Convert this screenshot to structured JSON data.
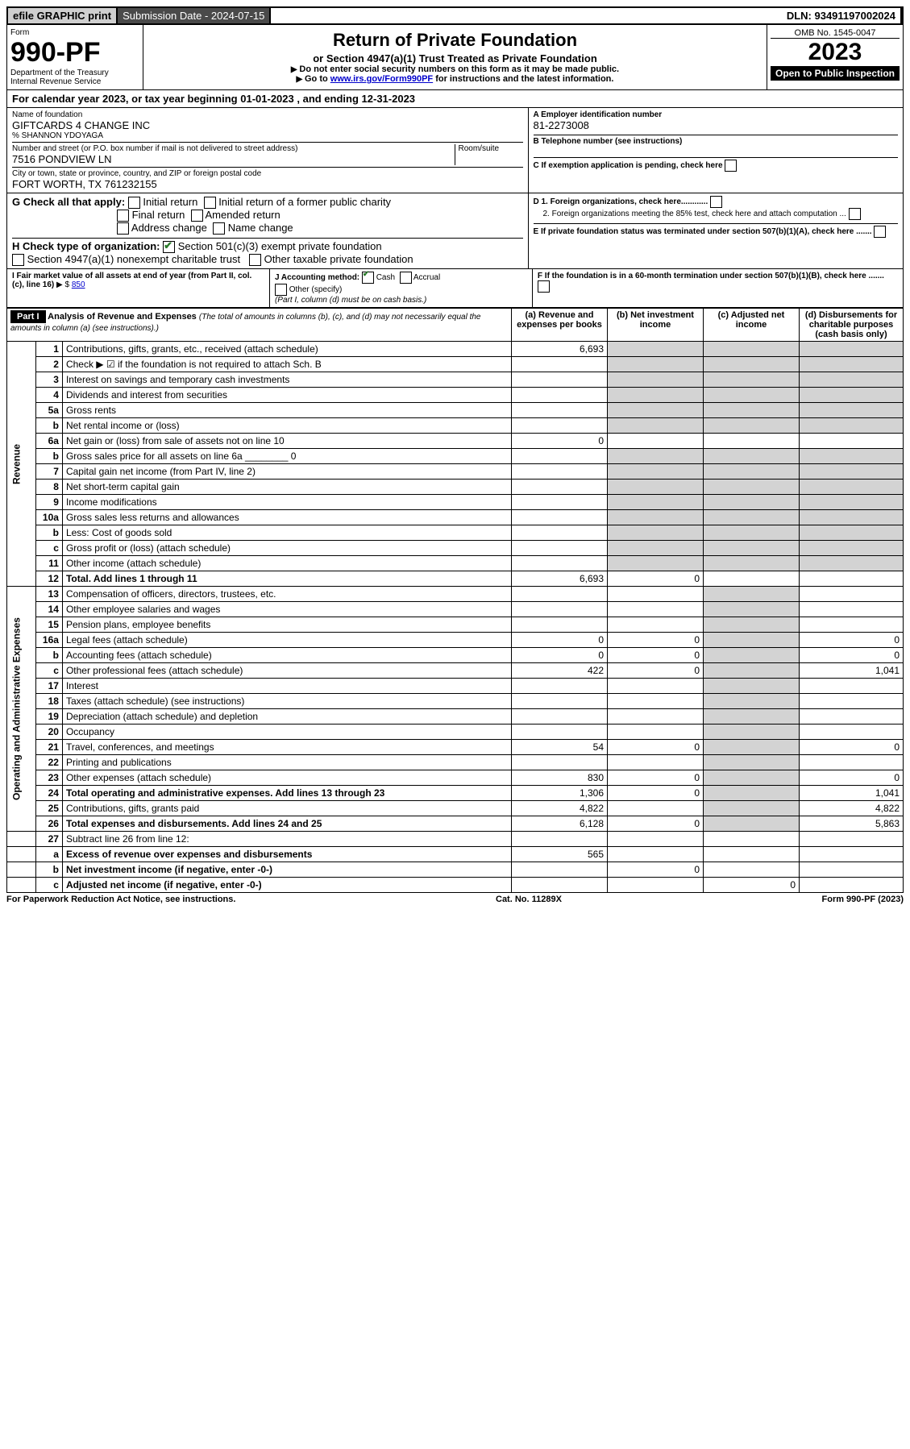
{
  "topbar": {
    "efile": "efile GRAPHIC print",
    "subdate_label": "Submission Date - 2024-07-15",
    "dln": "DLN: 93491197002024"
  },
  "header": {
    "form_word": "Form",
    "form_no": "990-PF",
    "dept": "Department of the Treasury",
    "irs": "Internal Revenue Service",
    "title": "Return of Private Foundation",
    "subtitle": "or Section 4947(a)(1) Trust Treated as Private Foundation",
    "note1": "Do not enter social security numbers on this form as it may be made public.",
    "note2_prefix": "Go to ",
    "note2_link": "www.irs.gov/Form990PF",
    "note2_suffix": " for instructions and the latest information.",
    "omb": "OMB No. 1545-0047",
    "year": "2023",
    "inspect": "Open to Public Inspection"
  },
  "period": {
    "text_prefix": "For calendar year 2023, or tax year beginning ",
    "begin": "01-01-2023",
    "mid": " , and ending ",
    "end": "12-31-2023"
  },
  "entity": {
    "name_label": "Name of foundation",
    "name": "GIFTCARDS 4 CHANGE INC",
    "careof": "% SHANNON YDOYAGA",
    "street_label": "Number and street (or P.O. box number if mail is not delivered to street address)",
    "room_label": "Room/suite",
    "street": "7516 PONDVIEW LN",
    "city_label": "City or town, state or province, country, and ZIP or foreign postal code",
    "city": "FORT WORTH, TX  761232155",
    "ein_label": "A Employer identification number",
    "ein": "81-2273008",
    "phone_label": "B Telephone number (see instructions)",
    "c_label": "C If exemption application is pending, check here"
  },
  "checks": {
    "g_label": "G Check all that apply:",
    "g_items": [
      "Initial return",
      "Initial return of a former public charity",
      "Final return",
      "Amended return",
      "Address change",
      "Name change"
    ],
    "h_label": "H Check type of organization:",
    "h1": "Section 501(c)(3) exempt private foundation",
    "h2": "Section 4947(a)(1) nonexempt charitable trust",
    "h3": "Other taxable private foundation",
    "d1": "D 1. Foreign organizations, check here............",
    "d2": "2. Foreign organizations meeting the 85% test, check here and attach computation ...",
    "e": "E If private foundation status was terminated under section 507(b)(1)(A), check here .......",
    "f": "F If the foundation is in a 60-month termination under section 507(b)(1)(B), check here .......",
    "i_label": "I Fair market value of all assets at end of year (from Part II, col. (c), line 16)",
    "i_val": "850",
    "j_label": "J Accounting method:",
    "j_cash": "Cash",
    "j_accrual": "Accrual",
    "j_other": "Other (specify)",
    "j_note": "(Part I, column (d) must be on cash basis.)"
  },
  "part1": {
    "label": "Part I",
    "title": "Analysis of Revenue and Expenses",
    "title_note": "(The total of amounts in columns (b), (c), and (d) may not necessarily equal the amounts in column (a) (see instructions).)",
    "col_a": "(a) Revenue and expenses per books",
    "col_b": "(b) Net investment income",
    "col_c": "(c) Adjusted net income",
    "col_d": "(d) Disbursements for charitable purposes (cash basis only)"
  },
  "sections": {
    "revenue": "Revenue",
    "opex": "Operating and Administrative Expenses"
  },
  "rows": [
    {
      "sec": "rev",
      "no": "1",
      "desc": "Contributions, gifts, grants, etc., received (attach schedule)",
      "a": "6,693",
      "b": "",
      "c": "",
      "d": ""
    },
    {
      "sec": "rev",
      "no": "2",
      "desc": "Check ▶ ☑ if the foundation is not required to attach Sch. B",
      "a": "",
      "b": "",
      "c": "",
      "d": ""
    },
    {
      "sec": "rev",
      "no": "3",
      "desc": "Interest on savings and temporary cash investments",
      "a": "",
      "b": "",
      "c": "",
      "d": ""
    },
    {
      "sec": "rev",
      "no": "4",
      "desc": "Dividends and interest from securities",
      "a": "",
      "b": "",
      "c": "",
      "d": ""
    },
    {
      "sec": "rev",
      "no": "5a",
      "desc": "Gross rents",
      "a": "",
      "b": "",
      "c": "",
      "d": ""
    },
    {
      "sec": "rev",
      "no": "b",
      "desc": "Net rental income or (loss)",
      "a": "",
      "b": "",
      "c": "",
      "d": ""
    },
    {
      "sec": "rev",
      "no": "6a",
      "desc": "Net gain or (loss) from sale of assets not on line 10",
      "a": "0",
      "b": "",
      "c": "",
      "d": ""
    },
    {
      "sec": "rev",
      "no": "b",
      "desc": "Gross sales price for all assets on line 6a ________ 0",
      "a": "",
      "b": "",
      "c": "",
      "d": ""
    },
    {
      "sec": "rev",
      "no": "7",
      "desc": "Capital gain net income (from Part IV, line 2)",
      "a": "",
      "b": "",
      "c": "",
      "d": ""
    },
    {
      "sec": "rev",
      "no": "8",
      "desc": "Net short-term capital gain",
      "a": "",
      "b": "",
      "c": "",
      "d": ""
    },
    {
      "sec": "rev",
      "no": "9",
      "desc": "Income modifications",
      "a": "",
      "b": "",
      "c": "",
      "d": ""
    },
    {
      "sec": "rev",
      "no": "10a",
      "desc": "Gross sales less returns and allowances",
      "a": "",
      "b": "",
      "c": "",
      "d": ""
    },
    {
      "sec": "rev",
      "no": "b",
      "desc": "Less: Cost of goods sold",
      "a": "",
      "b": "",
      "c": "",
      "d": ""
    },
    {
      "sec": "rev",
      "no": "c",
      "desc": "Gross profit or (loss) (attach schedule)",
      "a": "",
      "b": "",
      "c": "",
      "d": ""
    },
    {
      "sec": "rev",
      "no": "11",
      "desc": "Other income (attach schedule)",
      "a": "",
      "b": "",
      "c": "",
      "d": ""
    },
    {
      "sec": "rev",
      "no": "12",
      "desc": "Total. Add lines 1 through 11",
      "bold": true,
      "a": "6,693",
      "b": "0",
      "c": "",
      "d": ""
    },
    {
      "sec": "op",
      "no": "13",
      "desc": "Compensation of officers, directors, trustees, etc.",
      "a": "",
      "b": "",
      "c": "",
      "d": ""
    },
    {
      "sec": "op",
      "no": "14",
      "desc": "Other employee salaries and wages",
      "a": "",
      "b": "",
      "c": "",
      "d": ""
    },
    {
      "sec": "op",
      "no": "15",
      "desc": "Pension plans, employee benefits",
      "a": "",
      "b": "",
      "c": "",
      "d": ""
    },
    {
      "sec": "op",
      "no": "16a",
      "desc": "Legal fees (attach schedule)",
      "a": "0",
      "b": "0",
      "c": "",
      "d": "0"
    },
    {
      "sec": "op",
      "no": "b",
      "desc": "Accounting fees (attach schedule)",
      "a": "0",
      "b": "0",
      "c": "",
      "d": "0"
    },
    {
      "sec": "op",
      "no": "c",
      "desc": "Other professional fees (attach schedule)",
      "a": "422",
      "b": "0",
      "c": "",
      "d": "1,041"
    },
    {
      "sec": "op",
      "no": "17",
      "desc": "Interest",
      "a": "",
      "b": "",
      "c": "",
      "d": ""
    },
    {
      "sec": "op",
      "no": "18",
      "desc": "Taxes (attach schedule) (see instructions)",
      "a": "",
      "b": "",
      "c": "",
      "d": ""
    },
    {
      "sec": "op",
      "no": "19",
      "desc": "Depreciation (attach schedule) and depletion",
      "a": "",
      "b": "",
      "c": "",
      "d": ""
    },
    {
      "sec": "op",
      "no": "20",
      "desc": "Occupancy",
      "a": "",
      "b": "",
      "c": "",
      "d": ""
    },
    {
      "sec": "op",
      "no": "21",
      "desc": "Travel, conferences, and meetings",
      "a": "54",
      "b": "0",
      "c": "",
      "d": "0"
    },
    {
      "sec": "op",
      "no": "22",
      "desc": "Printing and publications",
      "a": "",
      "b": "",
      "c": "",
      "d": ""
    },
    {
      "sec": "op",
      "no": "23",
      "desc": "Other expenses (attach schedule)",
      "a": "830",
      "b": "0",
      "c": "",
      "d": "0"
    },
    {
      "sec": "op",
      "no": "24",
      "desc": "Total operating and administrative expenses. Add lines 13 through 23",
      "bold": true,
      "a": "1,306",
      "b": "0",
      "c": "",
      "d": "1,041"
    },
    {
      "sec": "op",
      "no": "25",
      "desc": "Contributions, gifts, grants paid",
      "a": "4,822",
      "b": "",
      "c": "",
      "d": "4,822"
    },
    {
      "sec": "op",
      "no": "26",
      "desc": "Total expenses and disbursements. Add lines 24 and 25",
      "bold": true,
      "a": "6,128",
      "b": "0",
      "c": "",
      "d": "5,863"
    },
    {
      "sec": "end",
      "no": "27",
      "desc": "Subtract line 26 from line 12:",
      "a": "",
      "b": "",
      "c": "",
      "d": ""
    },
    {
      "sec": "end",
      "no": "a",
      "desc": "Excess of revenue over expenses and disbursements",
      "bold": true,
      "a": "565",
      "b": "",
      "c": "",
      "d": ""
    },
    {
      "sec": "end",
      "no": "b",
      "desc": "Net investment income (if negative, enter -0-)",
      "bold": true,
      "a": "",
      "b": "0",
      "c": "",
      "d": ""
    },
    {
      "sec": "end",
      "no": "c",
      "desc": "Adjusted net income (if negative, enter -0-)",
      "bold": true,
      "a": "",
      "b": "",
      "c": "0",
      "d": ""
    }
  ],
  "footer": {
    "left": "For Paperwork Reduction Act Notice, see instructions.",
    "mid": "Cat. No. 11289X",
    "right": "Form 990-PF (2023)"
  },
  "shading": {
    "shade_cells_comment": "cells rendered with .shade match the grey blocks in the form image"
  }
}
